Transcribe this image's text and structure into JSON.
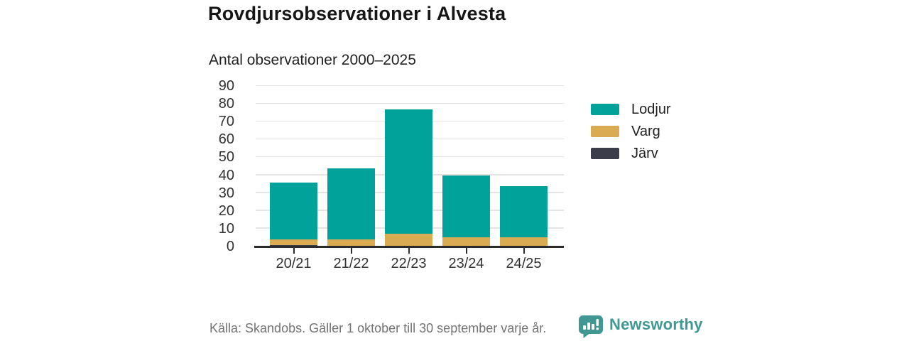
{
  "header": {
    "title": "Rovdjursobservationer i Alvesta",
    "subtitle": "Antal observationer 2000–2025"
  },
  "chart_data": {
    "type": "bar",
    "stacked": true,
    "title": "Rovdjursobservationer i Alvesta",
    "subtitle": "Antal observationer 2000–2025",
    "categories": [
      "20/21",
      "21/22",
      "22/23",
      "23/24",
      "24/25"
    ],
    "series": [
      {
        "name": "Lodjur",
        "color": "#00a29a",
        "values": [
          32,
          40,
          70,
          35,
          29
        ]
      },
      {
        "name": "Varg",
        "color": "#d9ab52",
        "values": [
          3,
          4,
          7,
          5,
          5
        ]
      },
      {
        "name": "Järv",
        "color": "#3b3e4a",
        "values": [
          1,
          0,
          0,
          0,
          0
        ]
      }
    ],
    "stack_order_bottom_to_top": [
      "Järv",
      "Varg",
      "Lodjur"
    ],
    "totals": [
      36,
      44,
      77,
      40,
      34
    ],
    "xlabel": "",
    "ylabel": "",
    "ylim": [
      0,
      90
    ],
    "yticks": [
      0,
      10,
      20,
      30,
      40,
      50,
      60,
      70,
      80,
      90
    ],
    "grid": "horizontal",
    "legend_position": "right"
  },
  "footer": {
    "source": "Källa: Skandobs. Gäller 1 oktober till 30 september varje år.",
    "brand": "Newsworthy"
  },
  "colors": {
    "lodjur": "#00a29a",
    "varg": "#d9ab52",
    "jarv": "#3b3e4a",
    "grid": "#e4e4e4",
    "axis": "#2b2b2b",
    "newsworthy": "#3f9894"
  }
}
